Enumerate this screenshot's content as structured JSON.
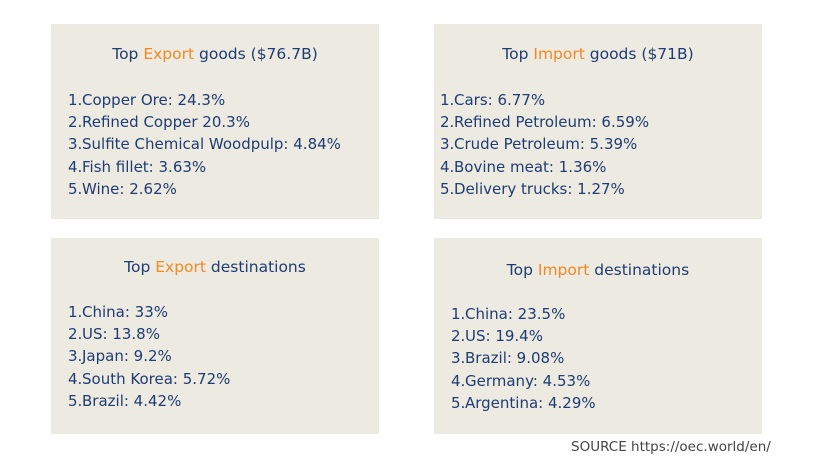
{
  "cards": {
    "export_goods": {
      "title_prefix": "Top ",
      "title_accent": "Export",
      "title_suffix": " goods  ($76.7B)",
      "items": [
        {
          "num": "1.",
          "text": "Copper Ore: 24.3%"
        },
        {
          "num": "2.",
          "text": "Refined Copper 20.3%"
        },
        {
          "num": "3.",
          "text": "Sulfite Chemical Woodpulp: 4.84%"
        },
        {
          "num": "4.",
          "text": "Fish fillet: 3.63%"
        },
        {
          "num": "5.",
          "text": "Wine: 2.62%"
        }
      ]
    },
    "import_goods": {
      "title_prefix": "Top ",
      "title_accent": "Import",
      "title_suffix": " goods ($71B)",
      "items": [
        {
          "num": "1.",
          "text": "Cars: 6.77%"
        },
        {
          "num": "2.",
          "text": "Refined Petroleum: 6.59%"
        },
        {
          "num": "3.",
          "text": "Crude Petroleum: 5.39%"
        },
        {
          "num": "4.",
          "text": "Bovine meat: 1.36%"
        },
        {
          "num": "5.",
          "text": "Delivery trucks: 1.27%"
        }
      ]
    },
    "export_destinations": {
      "title_prefix": "Top ",
      "title_accent": "Export",
      "title_suffix": " destinations",
      "items": [
        {
          "num": "1.",
          "text": "China: 33%"
        },
        {
          "num": "2.",
          "text": "US: 13.8%"
        },
        {
          "num": "3.",
          "text": "Japan: 9.2%"
        },
        {
          "num": "4.",
          "text": "South Korea: 5.72%"
        },
        {
          "num": "5.",
          "text": "Brazil: 4.42%"
        }
      ]
    },
    "import_destinations": {
      "title_prefix": "Top ",
      "title_accent": "Import",
      "title_suffix": " destinations",
      "items": [
        {
          "num": "1.",
          "text": "China: 23.5%"
        },
        {
          "num": "2.",
          "text": "US: 19.4%"
        },
        {
          "num": "3.",
          "text": "Brazil: 9.08%"
        },
        {
          "num": "4.",
          "text": "Germany: 4.53%"
        },
        {
          "num": "5.",
          "text": "Argentina: 4.29%"
        }
      ]
    }
  },
  "source": "SOURCE https://oec.world/en/",
  "colors": {
    "card_background": "#edeae1",
    "text_navy": "#1f3c73",
    "accent_orange": "#ef8a25"
  }
}
